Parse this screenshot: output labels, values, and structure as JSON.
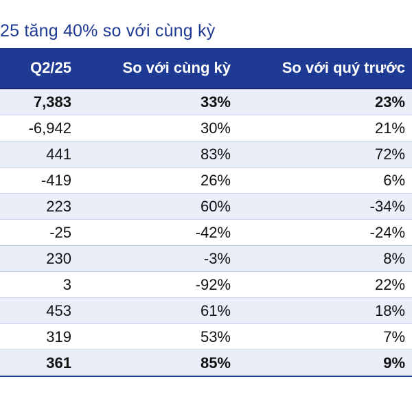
{
  "title": "25 tăng 40% so với cùng kỳ",
  "header": {
    "col1": "Q2/25",
    "col2": "So với cùng kỳ",
    "col3": "So với quý trước"
  },
  "rows": [
    {
      "q": "7,383",
      "yoy": "33%",
      "qoq": "23%"
    },
    {
      "q": "-6,942",
      "yoy": "30%",
      "qoq": "21%"
    },
    {
      "q": "441",
      "yoy": "83%",
      "qoq": "72%"
    },
    {
      "q": "-419",
      "yoy": "26%",
      "qoq": "6%"
    },
    {
      "q": "223",
      "yoy": "60%",
      "qoq": "-34%"
    },
    {
      "q": "-25",
      "yoy": "-42%",
      "qoq": "-24%"
    },
    {
      "q": "230",
      "yoy": "-3%",
      "qoq": "8%"
    },
    {
      "q": "3",
      "yoy": "-92%",
      "qoq": "22%"
    },
    {
      "q": "453",
      "yoy": "61%",
      "qoq": "18%"
    },
    {
      "q": "319",
      "yoy": "53%",
      "qoq": "7%"
    },
    {
      "q": "361",
      "yoy": "85%",
      "qoq": "9%"
    }
  ],
  "colors": {
    "header_bg": "#1f3a93",
    "title": "#1f3a93",
    "row_shade": "#e9eef8"
  }
}
